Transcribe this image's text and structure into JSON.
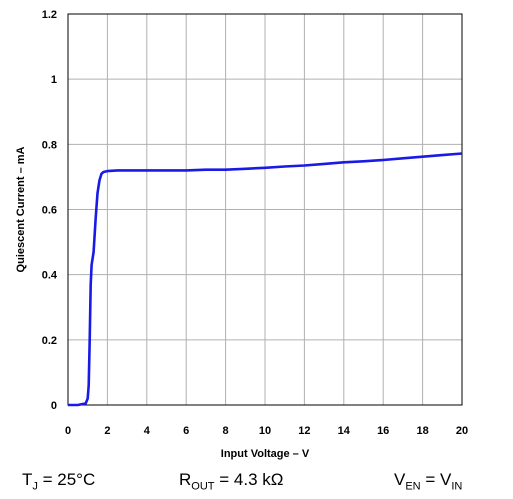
{
  "chart_data": {
    "type": "line",
    "title": "",
    "xlabel": "Input Voltage – V",
    "ylabel": "Quiescent Current – mA",
    "xlim": [
      0,
      20
    ],
    "ylim": [
      0,
      1.2
    ],
    "xticks": [
      "0",
      "2",
      "4",
      "6",
      "8",
      "10",
      "12",
      "14",
      "16",
      "18",
      "20"
    ],
    "yticks": [
      "0",
      "0.2",
      "0.4",
      "0.6",
      "0.8",
      "1",
      "1.2"
    ],
    "grid": true,
    "line_color": "#1a1ae6",
    "series": [
      {
        "x": [
          0,
          0.5,
          0.9,
          1.0,
          1.05,
          1.1,
          1.15,
          1.2,
          1.3,
          1.4,
          1.5,
          1.6,
          1.7,
          1.8,
          2.0,
          2.5,
          3,
          4,
          5,
          6,
          7,
          8,
          9,
          10,
          11,
          12,
          13,
          14,
          15,
          16,
          17,
          18,
          19,
          20
        ],
        "y": [
          0,
          0,
          0.005,
          0.02,
          0.06,
          0.2,
          0.37,
          0.43,
          0.47,
          0.57,
          0.65,
          0.69,
          0.71,
          0.715,
          0.718,
          0.72,
          0.72,
          0.72,
          0.72,
          0.72,
          0.722,
          0.722,
          0.725,
          0.728,
          0.732,
          0.735,
          0.74,
          0.745,
          0.748,
          0.752,
          0.757,
          0.762,
          0.767,
          0.772
        ]
      }
    ]
  },
  "conditions": {
    "tj": {
      "main": "T",
      "sub": "J",
      "rest": " = 25°C"
    },
    "rout": {
      "main": "R",
      "sub": "OUT",
      "rest": " = 4.3 kΩ"
    },
    "ven": {
      "main": "V",
      "sub": "EN",
      "rest": " = V",
      "sub2": "IN"
    }
  }
}
